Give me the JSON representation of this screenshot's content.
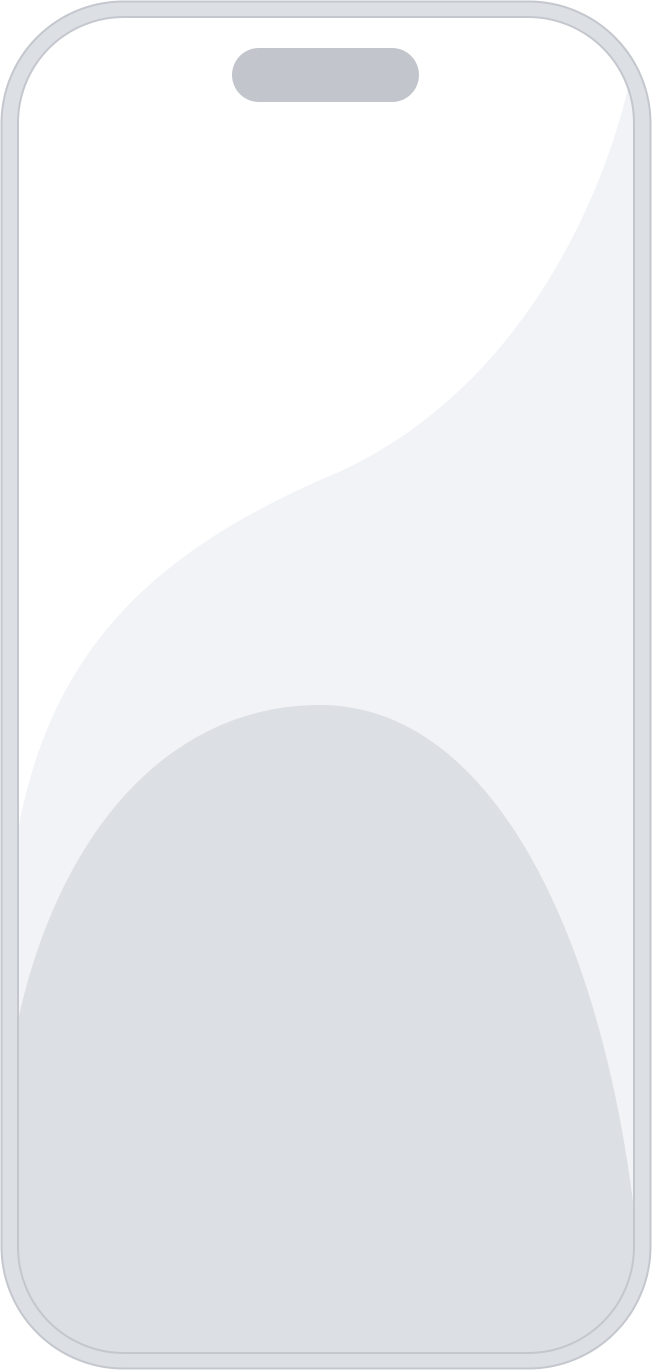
{
  "device": {
    "frame_color": "#DCDFE4",
    "frame_edge_color": "#C4C8CE",
    "screen_background": "#FFFFFF",
    "wave_light_color": "#F2F3F7",
    "wave_dark_color": "#DCDFE4",
    "dynamic_island_color": "#C2C6CC"
  }
}
